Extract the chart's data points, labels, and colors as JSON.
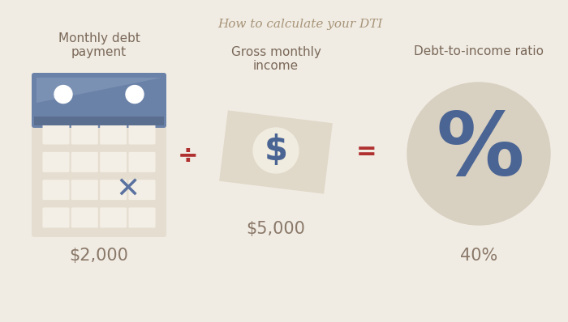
{
  "bg_color": "#f0ece4",
  "title": "How to calculate your DTI",
  "title_color": "#a89478",
  "title_fontsize": 11,
  "label1": "Monthly debt\npayment",
  "label2": "Gross monthly\nincome",
  "label3": "Debt-to-income ratio",
  "value1": "$2,000",
  "value2": "$5,000",
  "value3": "40%",
  "calendar_body_color": "#e4ddd0",
  "calendar_header_color": "#6b82a8",
  "calendar_header_light": "#8ba0c0",
  "calendar_header_dark": "#5a6e90",
  "calendar_dot_color": "#ffffff",
  "calendar_x_color": "#5a72a0",
  "calendar_grid_color": "#f4efe6",
  "calendar_grid_shadow": "#ddd5c5",
  "money_color": "#e0d8c8",
  "money_dollar_bg": "#f0ece0",
  "money_dollar_color": "#4a6494",
  "circle_color": "#d8d0c0",
  "percent_color": "#4a6494",
  "operator_color": "#b03030",
  "value_color": "#8a7868",
  "label_color": "#7a6858"
}
